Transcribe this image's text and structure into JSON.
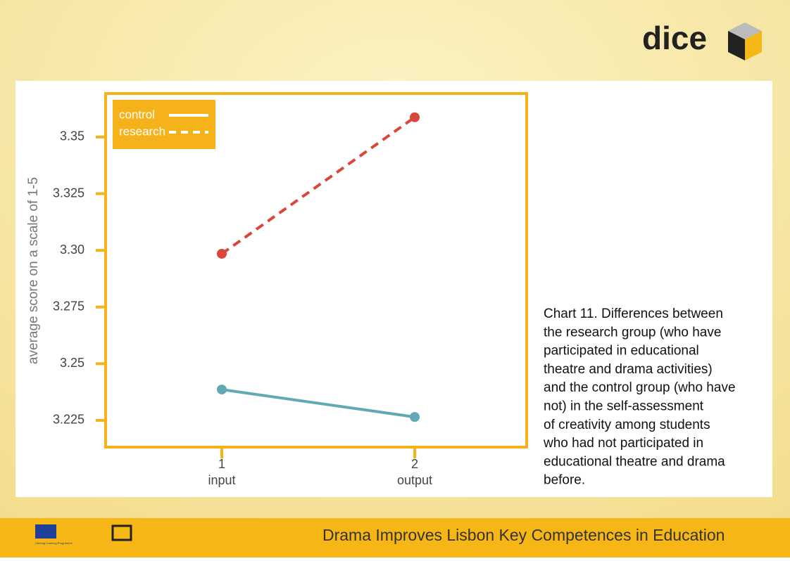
{
  "slide": {
    "logo": "dice",
    "footer": "Drama Improves Lisbon Key Competences in Education",
    "programme": "Lifelong Learning Programme",
    "caption": [
      "Chart 11. Differences between",
      "the research group (who have",
      "participated in educational",
      "theatre and drama activities)",
      "and the control group (who have",
      "not) in the self-assessment",
      "of creativity among students",
      "who had not participated in",
      "educational theatre and drama",
      "before."
    ]
  },
  "chart_data": {
    "type": "line",
    "y_label": "average score on a scale of 1-5",
    "categories": [
      "1",
      "2"
    ],
    "category_names": [
      "input",
      "output"
    ],
    "series": [
      {
        "name": "control",
        "color": "#62a9b6",
        "line_style": "solid",
        "values": [
          3.2386,
          3.2265
        ]
      },
      {
        "name": "research",
        "color": "#d9473a",
        "line_style": "dashed",
        "values": [
          3.2985,
          3.3587
        ]
      }
    ],
    "ylim": [
      3.2132,
      3.3692
    ],
    "yticks": [
      3.225,
      3.25,
      3.275,
      {
        "value": 3.3,
        "label": "3.30"
      },
      3.325,
      3.35
    ],
    "legend": "upper left",
    "axis_color": "#f5b21a",
    "grid": false
  }
}
